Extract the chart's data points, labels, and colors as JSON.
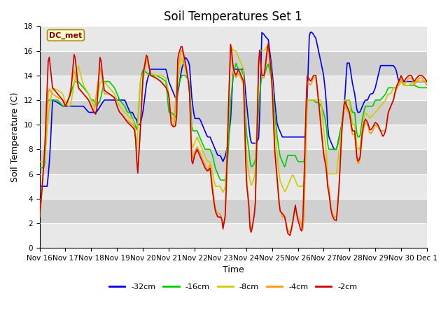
{
  "title": "Soil Temperatures Set 1",
  "ylabel": "Soil Temperature (C)",
  "xlabel": "Time",
  "ylim": [
    0,
    18
  ],
  "label": "DC_met",
  "legend_labels": [
    "-32cm",
    "-16cm",
    "-8cm",
    "-4cm",
    "-2cm"
  ],
  "legend_colors": [
    "#0000ee",
    "#00cc00",
    "#cccc00",
    "#ff9900",
    "#cc0000"
  ],
  "xtick_labels": [
    "Nov 16",
    "Nov 17",
    "Nov 18",
    "Nov 19",
    "Nov 20",
    "Nov 21",
    "Nov 22",
    "Nov 23",
    "Nov 24",
    "Nov 25",
    "Nov 26",
    "Nov 27",
    "Nov 28",
    "Nov 29",
    "Nov 30",
    "Dec 1"
  ],
  "background_color": "#ffffff",
  "plot_bg_color": "#e0e0e0",
  "band_light": "#e8e8e8",
  "band_dark": "#d0d0d0",
  "title_fontsize": 12,
  "axis_label_fontsize": 9,
  "tick_fontsize": 7.5
}
